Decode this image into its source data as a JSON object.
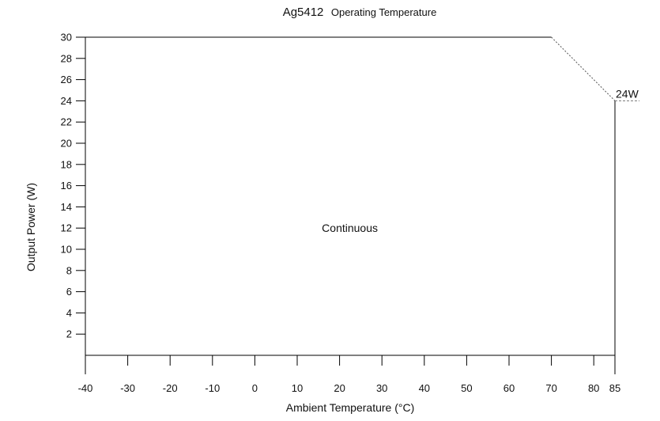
{
  "chart_data": {
    "type": "line",
    "title_main": "Ag5412",
    "title_sub": "Operating Temperature",
    "xlabel": "Ambient Temperature (°C)",
    "ylabel": "Output Power (W)",
    "xlim": [
      -40,
      85
    ],
    "ylim": [
      0,
      30
    ],
    "x_ticks": [
      -40,
      -30,
      -20,
      -10,
      0,
      10,
      20,
      30,
      40,
      50,
      60,
      70,
      80,
      85
    ],
    "y_ticks": [
      2,
      4,
      6,
      8,
      10,
      12,
      14,
      16,
      18,
      20,
      22,
      24,
      26,
      28,
      30
    ],
    "series": [
      {
        "x": [
          -40,
          70,
          85,
          85
        ],
        "y": [
          30,
          30,
          24,
          0
        ]
      }
    ],
    "annotations": [
      {
        "text": "24W",
        "x": 85,
        "y": 24
      },
      {
        "text": "Continuous",
        "x": 20,
        "y": 12
      }
    ],
    "grid": false
  }
}
